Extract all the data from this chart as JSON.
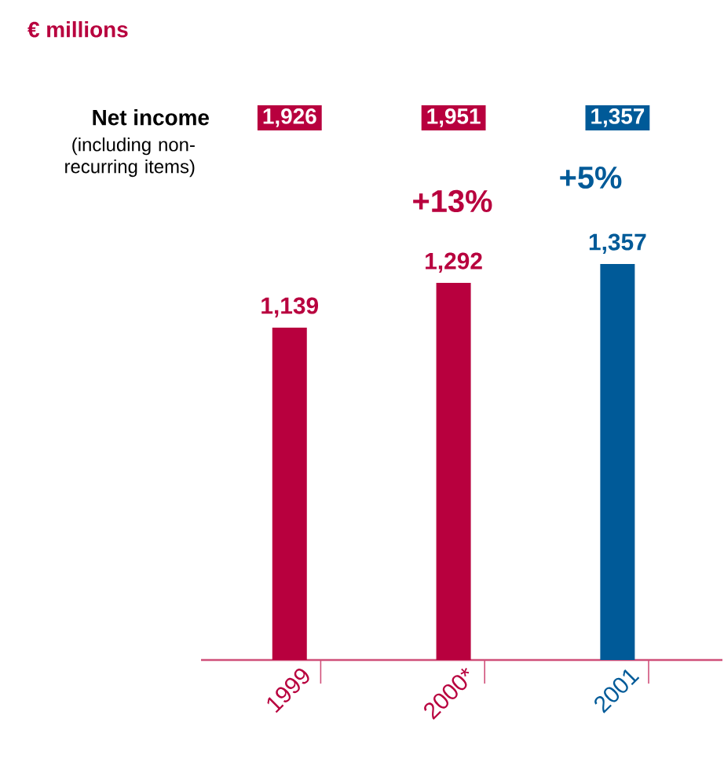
{
  "chart_data": {
    "type": "bar",
    "subtitle": "€ millions",
    "categories": [
      "1999",
      "2000*",
      "2001"
    ],
    "values": [
      1139,
      1292,
      1357
    ],
    "colors": [
      "#b8003e",
      "#b8003e",
      "#005a98"
    ],
    "value_labels": [
      "1,139",
      "1,292",
      "1,357"
    ],
    "tick_labels": "x",
    "annotations": [
      "Net income",
      "(including non-recurring items)",
      "1,926",
      "1,951",
      "1,357",
      "+13%",
      "+5%"
    ]
  }
}
